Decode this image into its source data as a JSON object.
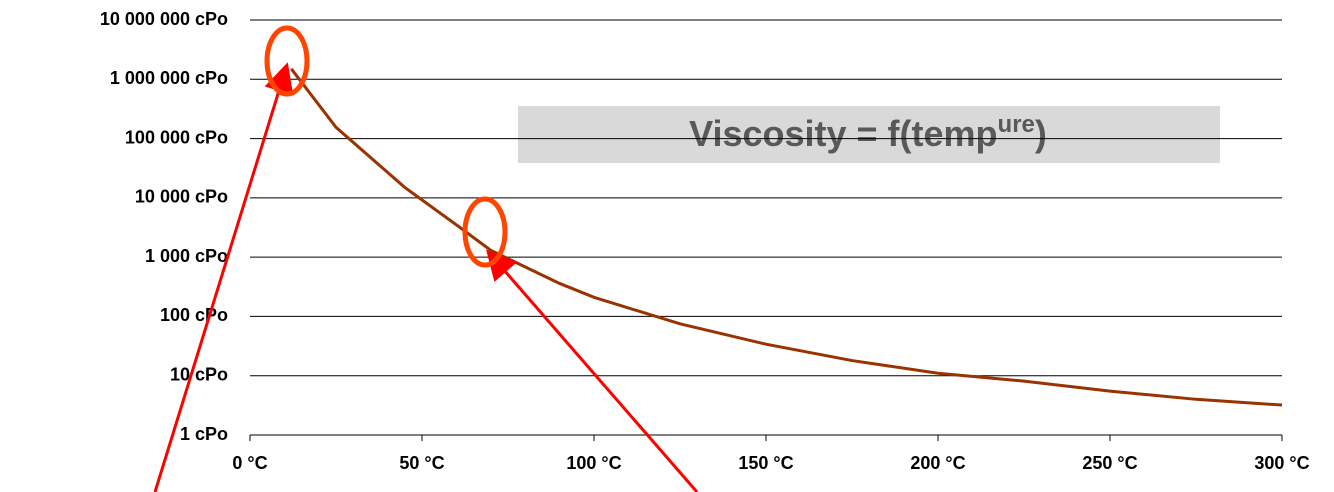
{
  "chart_data": {
    "type": "line",
    "title": "Viscosity = f(temp",
    "title_superscript": "ure",
    "title_end": ")",
    "x": [
      12,
      25,
      45,
      60,
      70,
      90,
      100,
      125,
      150,
      175,
      200,
      225,
      250,
      275,
      300
    ],
    "series": [
      {
        "name": "Viscosity",
        "color": "#993300",
        "values": [
          1500000,
          155000,
          15000,
          3500,
          1300,
          360,
          210,
          75,
          34,
          18,
          11,
          8.1,
          5.5,
          4,
          3.2
        ]
      }
    ],
    "xlim": [
      0,
      300
    ],
    "xticks": [
      {
        "value": 0,
        "label": "0 °C"
      },
      {
        "value": 50,
        "label": "50 °C"
      },
      {
        "value": 100,
        "label": "100 °C"
      },
      {
        "value": 150,
        "label": "150 °C"
      },
      {
        "value": 200,
        "label": "200 °C"
      },
      {
        "value": 250,
        "label": "250 °C"
      },
      {
        "value": 300,
        "label": "300 °C"
      }
    ],
    "ylim": [
      1,
      10000000
    ],
    "ylog": true,
    "grid": true,
    "yticks": [
      {
        "value": 1,
        "label": "1 cPo"
      },
      {
        "value": 10,
        "label": "10 cPo"
      },
      {
        "value": 100,
        "label": "100 cPo"
      },
      {
        "value": 1000,
        "label": "1 000 cPo"
      },
      {
        "value": 10000,
        "label": "10 000 cPo"
      },
      {
        "value": 100000,
        "label": "100 000 cPo"
      },
      {
        "value": 1000000,
        "label": "1 000 000 cPo"
      },
      {
        "value": 10000000,
        "label": "10 000 000 cPo"
      }
    ]
  }
}
